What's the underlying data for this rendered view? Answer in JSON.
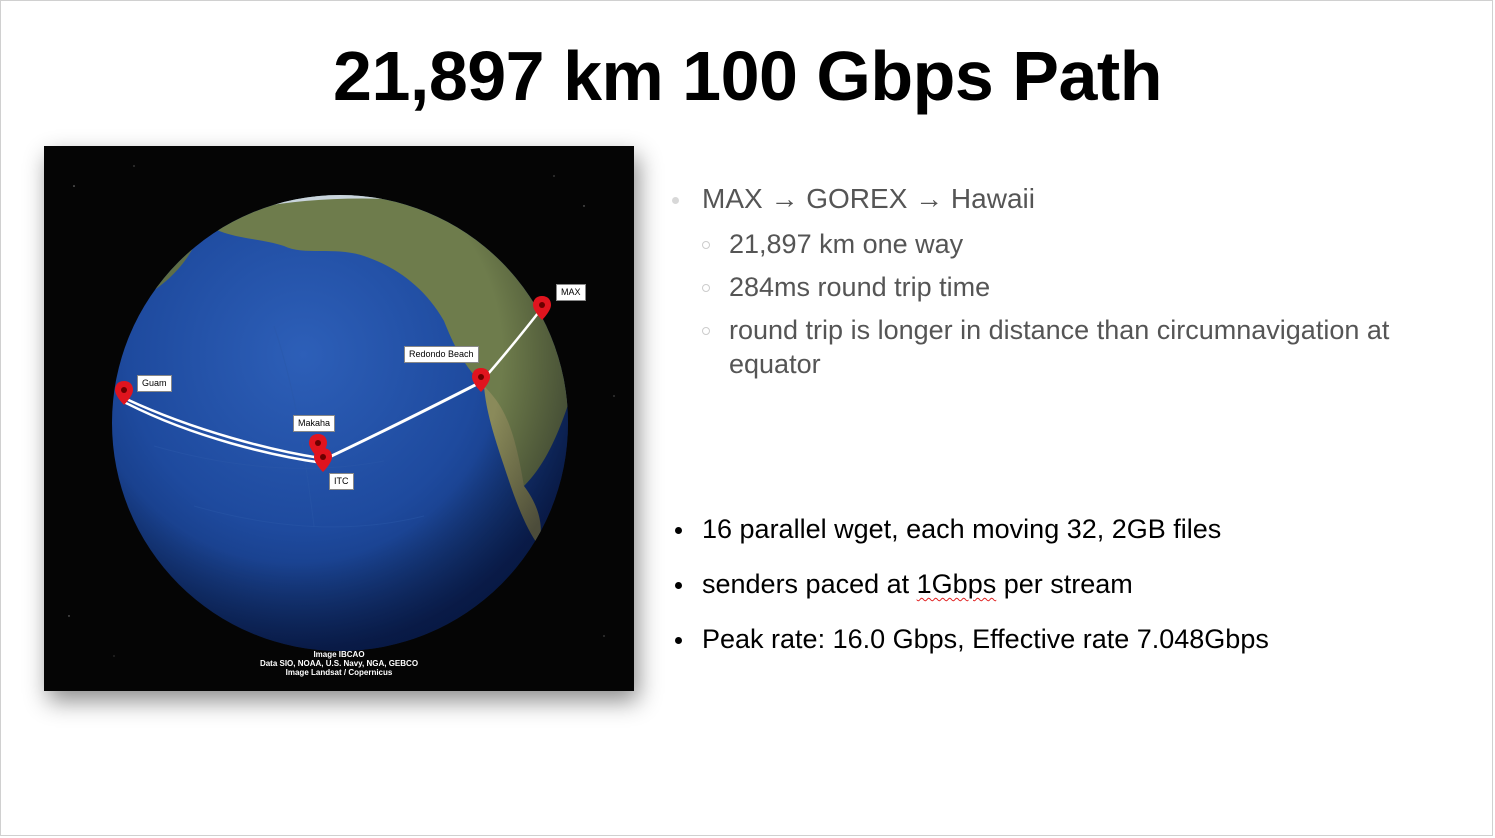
{
  "slide": {
    "title": "21,897 km 100 Gbps Path"
  },
  "map": {
    "labels": {
      "max": "MAX",
      "redondo": "Redondo Beach",
      "guam": "Guam",
      "makaha": "Makaha",
      "itc": "ITC"
    },
    "credits": {
      "line1": "Image IBCAO",
      "line2": "Data SIO, NOAA, U.S. Navy, NGA, GEBCO",
      "line3": "Image Landsat / Copernicus"
    },
    "colors": {
      "ocean": "#1e4a9e",
      "land": "#6b7a4a",
      "route": "#ffffff",
      "pin": "#e0141e"
    }
  },
  "bullets_top": {
    "main": "MAX → GOREX → Hawaii",
    "subs": [
      "21,897 km one way",
      "284ms round trip time",
      "round trip is longer in distance than circumnavigation at equator"
    ]
  },
  "bullets_bottom": {
    "items": [
      "16 parallel wget, each moving 32, 2GB files",
      "Peak rate: 16.0 Gbps, Effective rate 7.048Gbps"
    ],
    "paced": {
      "before": "senders paced at ",
      "flagged": "1Gbps",
      "after": " per stream"
    }
  }
}
